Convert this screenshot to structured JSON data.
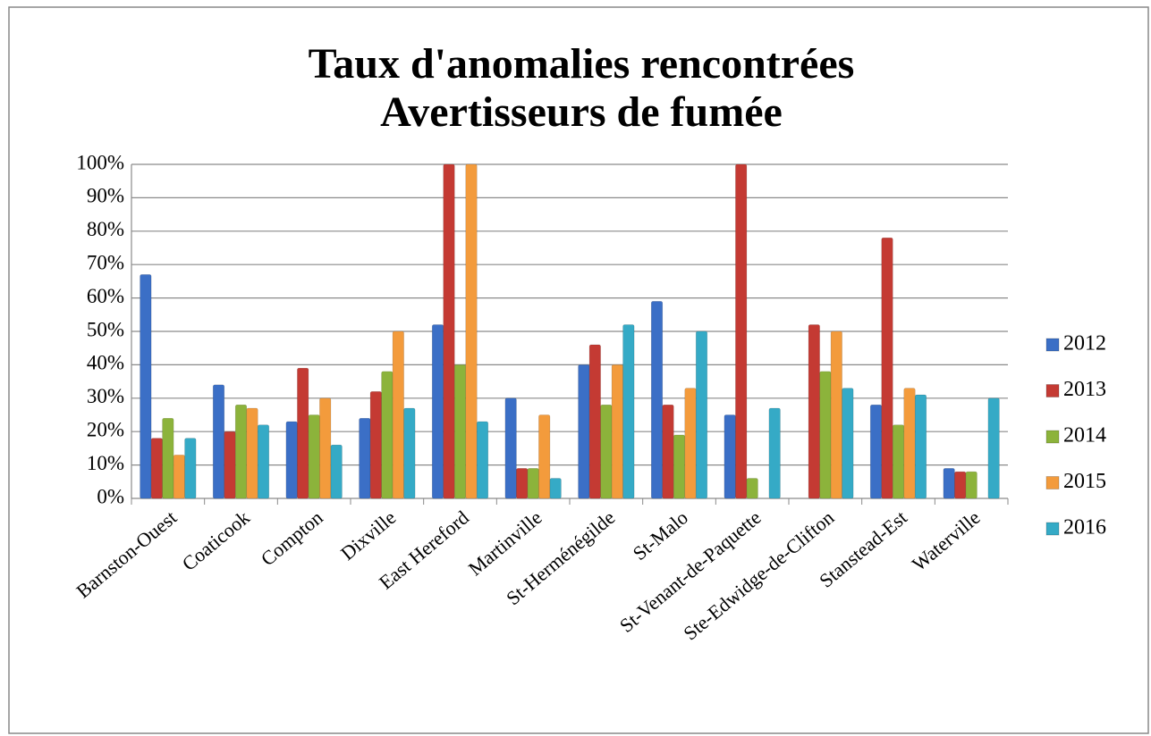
{
  "chart_data": {
    "type": "bar",
    "title": [
      "Taux d'anomalies rencontrées",
      "Avertisseurs de fumée"
    ],
    "categories": [
      "Barnston-Ouest",
      "Coaticook",
      "Compton",
      "Dixville",
      "East Hereford",
      "Martinville",
      "St-Herménégilde",
      "St-Malo",
      "St-Venant-de-Paquette",
      "Ste-Edwidge-de-Clifton",
      "Stanstead-Est",
      "Waterville"
    ],
    "series": [
      {
        "name": "2012",
        "color": "#3b6fc6",
        "values": [
          67,
          34,
          23,
          24,
          52,
          30,
          40,
          59,
          25,
          null,
          28,
          9
        ]
      },
      {
        "name": "2013",
        "color": "#c43a33",
        "values": [
          18,
          20,
          39,
          32,
          100,
          9,
          46,
          28,
          100,
          52,
          78,
          8
        ]
      },
      {
        "name": "2014",
        "color": "#8cb33b",
        "values": [
          24,
          28,
          25,
          38,
          40,
          9,
          28,
          19,
          6,
          38,
          22,
          8
        ]
      },
      {
        "name": "2015",
        "color": "#f39b3c",
        "values": [
          13,
          27,
          30,
          50,
          100,
          25,
          40,
          33,
          null,
          50,
          33,
          null
        ]
      },
      {
        "name": "2016",
        "color": "#35aac6",
        "values": [
          18,
          22,
          16,
          27,
          23,
          6,
          52,
          50,
          27,
          33,
          31,
          30
        ]
      }
    ],
    "ylim": [
      0,
      100
    ],
    "yticks": [
      {
        "value": 0,
        "label": "0%"
      },
      {
        "value": 10,
        "label": "10%"
      },
      {
        "value": 20,
        "label": "20%"
      },
      {
        "value": 30,
        "label": "30%"
      },
      {
        "value": 40,
        "label": "40%"
      },
      {
        "value": 50,
        "label": "50%"
      },
      {
        "value": 60,
        "label": "60%"
      },
      {
        "value": 70,
        "label": "70%"
      },
      {
        "value": 80,
        "label": "80%"
      },
      {
        "value": 90,
        "label": "90%"
      },
      {
        "value": 100,
        "label": "100%"
      }
    ],
    "grid": true,
    "legend": "right"
  }
}
